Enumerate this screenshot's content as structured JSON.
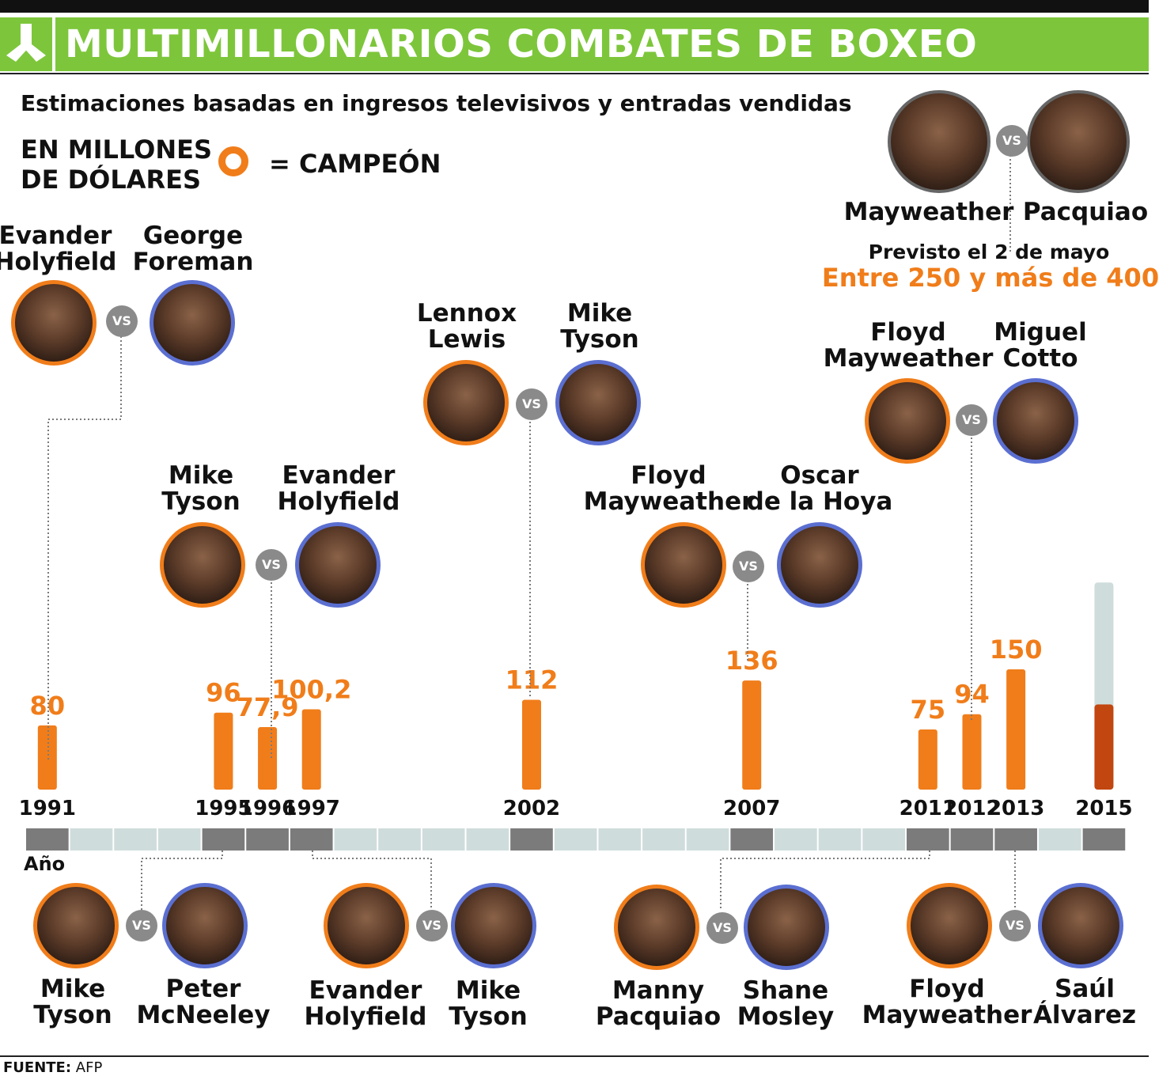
{
  "header": {
    "title": "MULTIMILLONARIOS COMBATES DE BOXEO",
    "subtitle": "Estimaciones basadas en ingresos televisivos y entradas vendidas",
    "units": "EN MILLONES\nDE DÓLARES",
    "legend_label": "= CAMPEÓN"
  },
  "colors": {
    "accent_green": "#7dc63b",
    "bar_orange": "#f07d1a",
    "bar_dark_orange": "#c2460f",
    "projection_gray": "#cfdcdc",
    "champion_ring": "#f07d1a",
    "opponent_ring": "#5b6fd1"
  },
  "vs_label": "VS",
  "axis_label": "Año",
  "planned": {
    "note": "Previsto el 2 de mayo",
    "range": "Entre 250 y más de 400"
  },
  "fights_top": [
    {
      "year": 1991,
      "a": "Evander\nHolyfield",
      "b": "George\nForeman"
    },
    {
      "year": 1996,
      "a": "Mike\nTyson",
      "b": "Evander\nHolyfield"
    },
    {
      "year": 2002,
      "a": "Lennox\nLewis",
      "b": "Mike\nTyson"
    },
    {
      "year": 2007,
      "a": "Floyd\nMayweather",
      "b": "Oscar\nde la Hoya"
    },
    {
      "year": 2012,
      "a": "Floyd\nMayweather",
      "b": "Miguel\nCotto"
    },
    {
      "year": 2015,
      "a": "Mayweather",
      "b": "Pacquiao"
    }
  ],
  "fights_bottom": [
    {
      "year": 1995,
      "a": "Mike\nTyson",
      "b": "Peter\nMcNeeley"
    },
    {
      "year": 1997,
      "a": "Evander\nHolyfield",
      "b": "Mike\nTyson"
    },
    {
      "year": 2011,
      "a": "Manny\nPacquiao",
      "b": "Shane\nMosley"
    },
    {
      "year": 2013,
      "a": "Floyd\nMayweather",
      "b": "Saúl\nÁlvarez"
    }
  ],
  "chart_data": {
    "type": "bar",
    "title": "MULTIMILLONARIOS COMBATES DE BOXEO",
    "ylabel": "EN MILLONES DE DÓLARES",
    "xlabel": "Año",
    "categories": [
      "1991",
      "1995",
      "1996",
      "1997",
      "2002",
      "2007",
      "2011",
      "2012",
      "2013",
      "2015"
    ],
    "values": [
      80,
      96,
      77.9,
      100.2,
      112,
      136,
      75,
      94,
      150,
      250
    ],
    "value_labels": [
      "80",
      "96",
      "77,9",
      "100,2",
      "112",
      "136",
      "75",
      "94",
      "150",
      ""
    ],
    "projection_2015": {
      "low": 250,
      "high": 400
    },
    "axis_range_years": [
      1991,
      2015
    ],
    "grid": false,
    "legend": "top-left"
  },
  "source": {
    "label": "FUENTE:",
    "value": "AFP"
  }
}
